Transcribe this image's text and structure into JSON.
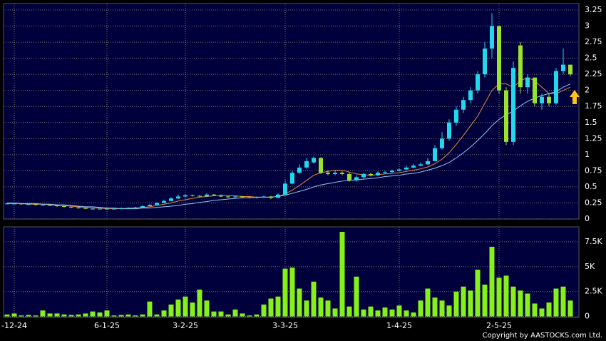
{
  "chart_data": {
    "type": "candlestick",
    "categories": [
      null,
      "-12-24",
      null,
      null,
      null,
      null,
      null,
      null,
      null,
      null,
      null,
      null,
      null,
      null,
      "6-1-25",
      null,
      null,
      null,
      null,
      null,
      null,
      null,
      null,
      null,
      null,
      "3-2-25",
      null,
      null,
      null,
      null,
      null,
      null,
      null,
      null,
      null,
      null,
      null,
      null,
      null,
      "3-3-25",
      null,
      null,
      null,
      null,
      null,
      null,
      null,
      null,
      null,
      null,
      null,
      null,
      null,
      null,
      null,
      "1-4-25",
      null,
      null,
      null,
      null,
      null,
      null,
      null,
      null,
      null,
      null,
      null,
      null,
      null,
      "2-5-25",
      null,
      null,
      null,
      null,
      null,
      null,
      null,
      null,
      null,
      null
    ],
    "ohlc": [
      [
        0.24,
        0.25,
        0.23,
        0.24
      ],
      [
        0.24,
        0.25,
        0.23,
        0.24
      ],
      [
        0.24,
        0.24,
        0.22,
        0.23
      ],
      [
        0.23,
        0.24,
        0.22,
        0.23
      ],
      [
        0.23,
        0.23,
        0.21,
        0.22
      ],
      [
        0.22,
        0.23,
        0.21,
        0.22
      ],
      [
        0.22,
        0.22,
        0.2,
        0.21
      ],
      [
        0.21,
        0.21,
        0.19,
        0.2
      ],
      [
        0.2,
        0.2,
        0.18,
        0.19
      ],
      [
        0.19,
        0.19,
        0.17,
        0.18
      ],
      [
        0.18,
        0.18,
        0.16,
        0.17
      ],
      [
        0.17,
        0.17,
        0.15,
        0.16
      ],
      [
        0.16,
        0.17,
        0.15,
        0.16
      ],
      [
        0.16,
        0.17,
        0.15,
        0.16
      ],
      [
        0.16,
        0.17,
        0.15,
        0.16
      ],
      [
        0.15,
        0.17,
        0.15,
        0.16
      ],
      [
        0.16,
        0.18,
        0.16,
        0.17
      ],
      [
        0.17,
        0.18,
        0.16,
        0.17
      ],
      [
        0.17,
        0.19,
        0.17,
        0.18
      ],
      [
        0.18,
        0.21,
        0.18,
        0.2
      ],
      [
        0.2,
        0.23,
        0.2,
        0.22
      ],
      [
        0.22,
        0.26,
        0.22,
        0.25
      ],
      [
        0.25,
        0.3,
        0.25,
        0.28
      ],
      [
        0.28,
        0.34,
        0.28,
        0.32
      ],
      [
        0.32,
        0.38,
        0.31,
        0.35
      ],
      [
        0.35,
        0.39,
        0.34,
        0.37
      ],
      [
        0.37,
        0.38,
        0.35,
        0.36
      ],
      [
        0.36,
        0.37,
        0.34,
        0.35
      ],
      [
        0.35,
        0.4,
        0.35,
        0.38
      ],
      [
        0.38,
        0.39,
        0.36,
        0.37
      ],
      [
        0.37,
        0.38,
        0.34,
        0.35
      ],
      [
        0.35,
        0.36,
        0.33,
        0.34
      ],
      [
        0.34,
        0.36,
        0.33,
        0.35
      ],
      [
        0.35,
        0.36,
        0.33,
        0.34
      ],
      [
        0.34,
        0.35,
        0.32,
        0.33
      ],
      [
        0.33,
        0.35,
        0.32,
        0.34
      ],
      [
        0.34,
        0.36,
        0.33,
        0.35
      ],
      [
        0.35,
        0.36,
        0.31,
        0.33
      ],
      [
        0.33,
        0.4,
        0.33,
        0.38
      ],
      [
        0.38,
        0.6,
        0.37,
        0.55
      ],
      [
        0.55,
        0.75,
        0.54,
        0.72
      ],
      [
        0.72,
        0.85,
        0.7,
        0.8
      ],
      [
        0.8,
        0.95,
        0.78,
        0.9
      ],
      [
        0.88,
        0.97,
        0.86,
        0.95
      ],
      [
        0.95,
        0.96,
        0.7,
        0.72
      ],
      [
        0.72,
        0.76,
        0.68,
        0.7
      ],
      [
        0.7,
        0.75,
        0.68,
        0.72
      ],
      [
        0.72,
        0.74,
        0.68,
        0.7
      ],
      [
        0.7,
        0.72,
        0.58,
        0.6
      ],
      [
        0.6,
        0.68,
        0.58,
        0.65
      ],
      [
        0.65,
        0.72,
        0.63,
        0.7
      ],
      [
        0.7,
        0.72,
        0.66,
        0.68
      ],
      [
        0.68,
        0.74,
        0.67,
        0.72
      ],
      [
        0.72,
        0.75,
        0.7,
        0.73
      ],
      [
        0.73,
        0.77,
        0.72,
        0.75
      ],
      [
        0.75,
        0.79,
        0.74,
        0.77
      ],
      [
        0.77,
        0.83,
        0.76,
        0.8
      ],
      [
        0.8,
        0.86,
        0.79,
        0.83
      ],
      [
        0.83,
        0.88,
        0.82,
        0.85
      ],
      [
        0.85,
        0.95,
        0.84,
        0.9
      ],
      [
        0.9,
        1.15,
        0.9,
        1.1
      ],
      [
        1.1,
        1.35,
        1.08,
        1.25
      ],
      [
        1.25,
        1.55,
        1.22,
        1.5
      ],
      [
        1.5,
        1.75,
        1.45,
        1.7
      ],
      [
        1.7,
        1.9,
        1.65,
        1.85
      ],
      [
        1.85,
        2.05,
        1.8,
        2.0
      ],
      [
        2.0,
        2.3,
        1.95,
        2.25
      ],
      [
        2.25,
        2.75,
        2.2,
        2.65
      ],
      [
        2.65,
        3.2,
        2.5,
        3.0
      ],
      [
        3.0,
        3.0,
        1.95,
        2.0
      ],
      [
        2.0,
        2.05,
        1.15,
        1.2
      ],
      [
        1.2,
        2.45,
        1.15,
        2.35
      ],
      [
        2.7,
        2.75,
        1.95,
        2.05
      ],
      [
        2.05,
        2.25,
        1.95,
        2.2
      ],
      [
        2.2,
        2.2,
        1.75,
        1.8
      ],
      [
        1.8,
        1.95,
        1.7,
        1.9
      ],
      [
        1.9,
        1.95,
        1.75,
        1.8
      ],
      [
        1.8,
        2.35,
        1.78,
        2.3
      ],
      [
        2.3,
        2.65,
        2.25,
        2.4
      ],
      [
        2.4,
        2.4,
        2.22,
        2.25
      ]
    ],
    "up_color": "#22d8ec",
    "down_color": "#9be22c",
    "series": [
      {
        "color": "#e8873a",
        "values": [
          0.24,
          0.24,
          0.24,
          0.23,
          0.23,
          0.23,
          0.22,
          0.21,
          0.21,
          0.2,
          0.19,
          0.18,
          0.17,
          0.17,
          0.16,
          0.16,
          0.16,
          0.17,
          0.17,
          0.18,
          0.19,
          0.21,
          0.23,
          0.25,
          0.28,
          0.3,
          0.32,
          0.34,
          0.35,
          0.36,
          0.36,
          0.36,
          0.36,
          0.35,
          0.35,
          0.34,
          0.34,
          0.34,
          0.35,
          0.39,
          0.45,
          0.52,
          0.6,
          0.68,
          0.72,
          0.74,
          0.76,
          0.76,
          0.73,
          0.7,
          0.69,
          0.68,
          0.69,
          0.7,
          0.71,
          0.72,
          0.74,
          0.76,
          0.78,
          0.81,
          0.86,
          0.93,
          1.03,
          1.16,
          1.3,
          1.45,
          1.6,
          1.8,
          2.0,
          2.1,
          2.1,
          2.05,
          2.15,
          2.2,
          2.15,
          2.05,
          1.95,
          1.95,
          2.0,
          2.05
        ]
      },
      {
        "color": "#8ec8f0",
        "values": [
          0.25,
          0.25,
          0.24,
          0.24,
          0.24,
          0.23,
          0.23,
          0.22,
          0.22,
          0.21,
          0.2,
          0.19,
          0.19,
          0.18,
          0.17,
          0.17,
          0.16,
          0.16,
          0.16,
          0.17,
          0.17,
          0.18,
          0.19,
          0.2,
          0.21,
          0.23,
          0.24,
          0.26,
          0.27,
          0.29,
          0.3,
          0.31,
          0.32,
          0.33,
          0.33,
          0.34,
          0.34,
          0.34,
          0.35,
          0.37,
          0.4,
          0.43,
          0.46,
          0.5,
          0.53,
          0.55,
          0.57,
          0.59,
          0.6,
          0.61,
          0.62,
          0.63,
          0.64,
          0.66,
          0.67,
          0.68,
          0.7,
          0.71,
          0.73,
          0.76,
          0.79,
          0.83,
          0.88,
          0.95,
          1.03,
          1.12,
          1.22,
          1.33,
          1.45,
          1.55,
          1.62,
          1.68,
          1.76,
          1.83,
          1.88,
          1.92,
          1.95,
          1.98,
          2.05,
          2.1
        ]
      }
    ],
    "ylim": [
      0,
      3.35
    ],
    "yticks": [
      0,
      0.25,
      0.5,
      0.75,
      1,
      1.25,
      1.5,
      1.75,
      2,
      2.25,
      2.5,
      2.75,
      3,
      3.25
    ],
    "volume": {
      "color": "#86f01a",
      "values": [
        200,
        300,
        100,
        150,
        100,
        600,
        300,
        300,
        200,
        150,
        200,
        300,
        500,
        400,
        600,
        100,
        150,
        200,
        100,
        200,
        1500,
        200,
        600,
        1200,
        1700,
        2000,
        1400,
        2700,
        1600,
        500,
        500,
        200,
        700,
        300,
        100,
        200,
        1200,
        1800,
        2000,
        4800,
        4900,
        2800,
        1600,
        3500,
        1900,
        1600,
        800,
        8500,
        1000,
        4000,
        700,
        1000,
        600,
        900,
        700,
        1100,
        600,
        400,
        1600,
        2800,
        1900,
        1600,
        1100,
        2500,
        3000,
        2600,
        4700,
        3200,
        7000,
        3900,
        4100,
        3000,
        2600,
        2300,
        1300,
        800,
        1400,
        2800,
        3000,
        1600
      ],
      "ylim": [
        -100,
        9000
      ],
      "yticks": [
        0,
        {
          "value": 2500,
          "label": "2.5K"
        },
        {
          "value": 5000,
          "label": "5K"
        },
        {
          "value": 7500,
          "label": "7.5K"
        }
      ]
    },
    "copyright": "Copyright by AASTOCKS.com Ltd.",
    "grid": true
  }
}
